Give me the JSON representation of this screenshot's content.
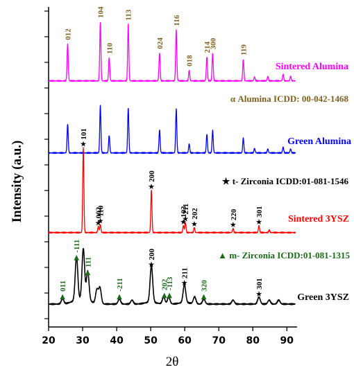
{
  "chart_data": {
    "type": "line",
    "xlabel": "2θ",
    "ylabel": "Intensity (a.u.)",
    "xlim": [
      20,
      93
    ],
    "xticks": [
      20,
      30,
      40,
      50,
      60,
      70,
      80,
      90
    ],
    "grid": false,
    "colors": {
      "sintered_alumina": "#ff00ff",
      "green_alumina": "#0000ff",
      "sintered_3ysz": "#ff0000",
      "green_3ysz": "#000000",
      "alumina_index": "#806020",
      "alpha_ref": "#806020",
      "t_ref": "#000000",
      "m_ref": "#1a6a1a"
    },
    "series": [
      {
        "name": "Sintered Alumina",
        "color": "#ff00ff",
        "baseline": 0,
        "peaks": [
          [
            25.6,
            74
          ],
          [
            35.2,
            118
          ],
          [
            37.8,
            46
          ],
          [
            43.4,
            113
          ],
          [
            52.6,
            56
          ],
          [
            57.5,
            102
          ],
          [
            61.3,
            21
          ],
          [
            66.5,
            48
          ],
          [
            68.2,
            55
          ],
          [
            77.2,
            43
          ],
          [
            80.5,
            8
          ],
          [
            84.4,
            9
          ],
          [
            88.9,
            13
          ],
          [
            91.1,
            9
          ]
        ]
      },
      {
        "name": "Green Alumina",
        "color": "#0000ff",
        "baseline": 0,
        "peaks": [
          [
            25.6,
            58
          ],
          [
            35.2,
            95
          ],
          [
            37.8,
            35
          ],
          [
            43.4,
            90
          ],
          [
            52.6,
            46
          ],
          [
            57.5,
            88
          ],
          [
            61.3,
            18
          ],
          [
            66.5,
            37
          ],
          [
            68.2,
            45
          ],
          [
            77.2,
            30
          ],
          [
            80.5,
            9
          ],
          [
            84.4,
            8
          ],
          [
            88.9,
            12
          ],
          [
            91.1,
            8
          ]
        ]
      },
      {
        "name": "Sintered 3YSZ",
        "color": "#ff0000",
        "baseline": 0,
        "peaks": [
          [
            30.2,
            170
          ],
          [
            34.6,
            12
          ],
          [
            35.2,
            16
          ],
          [
            50.2,
            85
          ],
          [
            59.6,
            14
          ],
          [
            60.2,
            20
          ],
          [
            62.8,
            10
          ],
          [
            74.2,
            8
          ],
          [
            81.8,
            14
          ],
          [
            84.8,
            5
          ]
        ]
      },
      {
        "name": "Green 3YSZ",
        "color": "#000000",
        "baseline": 0,
        "peaks": [
          [
            24.1,
            10
          ],
          [
            28.2,
            88
          ],
          [
            30.2,
            102
          ],
          [
            31.5,
            58
          ],
          [
            34.2,
            28
          ],
          [
            35.1,
            32
          ],
          [
            40.8,
            10
          ],
          [
            44.5,
            8
          ],
          [
            50.2,
            73
          ],
          [
            53.8,
            14
          ],
          [
            55.3,
            14
          ],
          [
            59.9,
            36
          ],
          [
            62.9,
            14
          ],
          [
            65.6,
            10
          ],
          [
            74.2,
            8
          ],
          [
            81.8,
            14
          ],
          [
            84.8,
            8
          ],
          [
            87.6,
            8
          ]
        ]
      }
    ],
    "reference_labels": [
      {
        "text": "α  Alumina ICDD: 00-042-1468"
      },
      {
        "text": "★ t- Zirconia ICDD:01-081-1546"
      },
      {
        "text": "▲ m- Zirconia ICDD:01-081-1315"
      }
    ],
    "alumina_indices": [
      {
        "x": 25.6,
        "label": "012"
      },
      {
        "x": 35.2,
        "label": "104"
      },
      {
        "x": 37.8,
        "label": "110"
      },
      {
        "x": 43.4,
        "label": "113"
      },
      {
        "x": 52.6,
        "label": "024"
      },
      {
        "x": 57.5,
        "label": "116"
      },
      {
        "x": 61.3,
        "label": "018"
      },
      {
        "x": 66.5,
        "label": "214"
      },
      {
        "x": 68.2,
        "label": "300"
      },
      {
        "x": 77.2,
        "label": "119"
      }
    ],
    "sintered_ysz_indices": [
      {
        "x": 30.2,
        "label": "101"
      },
      {
        "x": 34.6,
        "label": "002"
      },
      {
        "x": 35.2,
        "label": "110"
      },
      {
        "x": 50.2,
        "label": "200"
      },
      {
        "x": 59.6,
        "label": "103"
      },
      {
        "x": 60.2,
        "label": "211"
      },
      {
        "x": 62.8,
        "label": "202"
      },
      {
        "x": 74.2,
        "label": "220"
      },
      {
        "x": 81.8,
        "label": "301"
      }
    ],
    "green_ysz_indices": [
      {
        "x": 24.1,
        "label": "011",
        "phase": "m"
      },
      {
        "x": 28.2,
        "label": "-111",
        "phase": "m"
      },
      {
        "x": 31.5,
        "label": "111",
        "phase": "m"
      },
      {
        "x": 40.8,
        "label": "-211",
        "phase": "m"
      },
      {
        "x": 54.0,
        "label": "202",
        "phase": "m"
      },
      {
        "x": 55.5,
        "label": "-113",
        "phase": "m"
      },
      {
        "x": 65.6,
        "label": "320",
        "phase": "m"
      },
      {
        "x": 50.2,
        "label": "200",
        "phase": "t"
      },
      {
        "x": 59.9,
        "label": "211",
        "phase": "t"
      },
      {
        "x": 81.8,
        "label": "301",
        "phase": "t"
      }
    ]
  }
}
